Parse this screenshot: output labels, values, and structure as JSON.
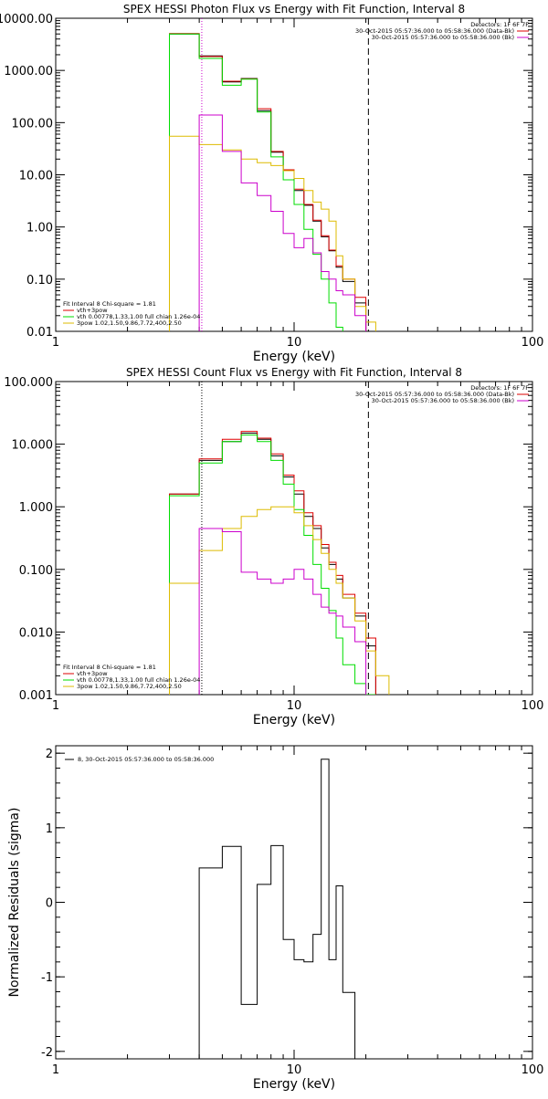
{
  "chart_data": [
    {
      "type": "line",
      "title": "SPEX HESSI Photon Flux vs Energy with Fit Function, Interval 8",
      "xlabel": "Energy (keV)",
      "ylabel": "",
      "xscale": "log",
      "yscale": "log",
      "xlim": [
        1,
        100
      ],
      "ylim": [
        0.01,
        10000
      ],
      "xticks": [
        {
          "v": 1,
          "label": "1"
        },
        {
          "v": 10,
          "label": "10"
        },
        {
          "v": 100,
          "label": "100"
        }
      ],
      "yticks": [
        {
          "v": 10000,
          "label": "10000.00"
        },
        {
          "v": 1000,
          "label": "1000.00"
        },
        {
          "v": 100,
          "label": "100.00"
        },
        {
          "v": 10,
          "label": "10.00"
        },
        {
          "v": 1,
          "label": "1.00"
        },
        {
          "v": 0.1,
          "label": "0.10"
        },
        {
          "v": 0.01,
          "label": "0.01"
        }
      ],
      "vlines": [
        {
          "x": 4.1,
          "style": "dotted",
          "color": "#cc00cc"
        },
        {
          "x": 20.5,
          "style": "dashed",
          "color": "#000000"
        }
      ],
      "edges": [
        3.0,
        4.0,
        5.0,
        6.0,
        7.0,
        8.0,
        9.0,
        10.0,
        11.0,
        12.0,
        13.0,
        14.0,
        15.0,
        16.0,
        18.0,
        20.0,
        22.0,
        25.0
      ],
      "series": [
        {
          "name": "",
          "color": "#000000",
          "values": [
            5000,
            1900,
            600,
            700,
            170,
            27,
            12,
            5,
            2.6,
            1.3,
            0.65,
            0.35,
            0.17,
            0.09,
            0.035,
            null,
            null
          ]
        },
        {
          "name": "vth+3pow",
          "color": "#dd0000",
          "values": [
            5100,
            1850,
            620,
            690,
            185,
            28,
            12.5,
            5.3,
            2.7,
            1.35,
            0.68,
            0.36,
            0.18,
            0.1,
            0.045,
            null,
            null
          ]
        },
        {
          "name": "vth 0.00778,1.33,1.00  full chian 1.26e-04",
          "color": "#00dd00",
          "values": [
            5000,
            1700,
            520,
            680,
            160,
            22,
            8,
            2.7,
            0.9,
            0.3,
            0.1,
            0.035,
            0.012,
            null,
            null,
            null,
            null
          ]
        },
        {
          "name": "3pow 1.02,1.50,9.86,7.72,400,2.50",
          "color": "#ddbb00",
          "values": [
            55,
            38,
            30,
            20,
            17,
            15,
            12,
            8.5,
            5,
            3,
            2.2,
            1.3,
            0.28,
            0.1,
            0.03,
            0.015,
            null
          ]
        },
        {
          "name": "",
          "color": "#cc00cc",
          "values": [
            null,
            140,
            28,
            7,
            4,
            2,
            0.75,
            0.4,
            0.6,
            0.32,
            0.14,
            0.1,
            0.06,
            0.05,
            0.02,
            null,
            null
          ]
        }
      ],
      "legend_top": {
        "header": "Detectors: 1F 6F 7F",
        "lines": [
          {
            "text": "30-Oct-2015 05:57:36.000 to 05:58:36.000 (Data-Bk)",
            "color": "#dd0000"
          },
          {
            "text": "30-Oct-2015 05:57:36.000 to 05:58:36.000 (Bk)",
            "color": "#cc00cc"
          }
        ]
      },
      "legend_bottom": {
        "header": "Fit Interval 8   Chi-square = 1.81",
        "lines": [
          {
            "text": "vth+3pow",
            "color": "#dd0000"
          },
          {
            "text": "vth 0.00778,1.33,1.00  full chian 1.26e-04",
            "color": "#00dd00"
          },
          {
            "text": "3pow 1.02,1.50,9.86,7.72,400,2.50",
            "color": "#ddbb00"
          }
        ]
      }
    },
    {
      "type": "line",
      "title": "SPEX HESSI Count Flux vs Energy with Fit Function, Interval 8",
      "xlabel": "Energy (keV)",
      "ylabel": "",
      "xscale": "log",
      "yscale": "log",
      "xlim": [
        1,
        100
      ],
      "ylim": [
        0.001,
        100
      ],
      "xticks": [
        {
          "v": 1,
          "label": "1"
        },
        {
          "v": 10,
          "label": "10"
        },
        {
          "v": 100,
          "label": "100"
        }
      ],
      "yticks": [
        {
          "v": 100,
          "label": "100.000"
        },
        {
          "v": 10,
          "label": "10.000"
        },
        {
          "v": 1,
          "label": "1.000"
        },
        {
          "v": 0.1,
          "label": "0.100"
        },
        {
          "v": 0.01,
          "label": "0.010"
        },
        {
          "v": 0.001,
          "label": "0.001"
        }
      ],
      "vlines": [
        {
          "x": 4.1,
          "style": "dotted",
          "color": "#000000"
        },
        {
          "x": 20.5,
          "style": "dashed",
          "color": "#000000"
        }
      ],
      "edges": [
        3.0,
        4.0,
        5.0,
        6.0,
        7.0,
        8.0,
        9.0,
        10.0,
        11.0,
        12.0,
        13.0,
        14.0,
        15.0,
        16.0,
        18.0,
        20.0,
        22.0,
        25.0
      ],
      "series": [
        {
          "name": "",
          "color": "#000000",
          "values": [
            1.6,
            5.5,
            11,
            15,
            12,
            6.5,
            3,
            1.6,
            0.7,
            0.45,
            0.22,
            0.12,
            0.07,
            0.035,
            0.018,
            0.006,
            null
          ]
        },
        {
          "name": "vth+3pow",
          "color": "#dd0000",
          "values": [
            1.6,
            5.8,
            12,
            16,
            12.5,
            7,
            3.2,
            1.8,
            0.8,
            0.5,
            0.25,
            0.13,
            0.08,
            0.04,
            0.02,
            0.008,
            null
          ]
        },
        {
          "name": "vth 0.00778,1.33,1.00  full chian 1.26e-04",
          "color": "#00dd00",
          "values": [
            1.5,
            5.0,
            11,
            14,
            11,
            5.5,
            2.3,
            0.9,
            0.35,
            0.12,
            0.05,
            0.022,
            0.008,
            0.003,
            0.0015,
            0.001,
            null
          ]
        },
        {
          "name": "3pow 1.02,1.50,9.86,7.72,400,2.50",
          "color": "#ddbb00",
          "values": [
            0.06,
            0.2,
            0.45,
            0.7,
            0.9,
            1.0,
            1.0,
            0.8,
            0.5,
            0.3,
            0.18,
            0.1,
            0.06,
            0.035,
            0.015,
            0.005,
            0.002
          ]
        },
        {
          "name": "",
          "color": "#cc00cc",
          "values": [
            null,
            0.45,
            0.4,
            0.09,
            0.07,
            0.06,
            0.07,
            0.1,
            0.07,
            0.04,
            0.025,
            0.02,
            0.018,
            0.012,
            0.007,
            null,
            null
          ]
        }
      ],
      "legend_top": {
        "header": "Detectors: 1F 6F 7F",
        "lines": [
          {
            "text": "30-Oct-2015 05:57:36.000 to 05:58:36.000 (Data-Bk)",
            "color": "#dd0000"
          },
          {
            "text": "30-Oct-2015 05:57:36.000 to 05:58:36.000 (Bk)",
            "color": "#cc00cc"
          }
        ]
      },
      "legend_bottom": {
        "header": "Fit Interval 8   Chi-square = 1.81",
        "lines": [
          {
            "text": "vth+3pow",
            "color": "#dd0000"
          },
          {
            "text": "vth 0.00778,1.33,1.00  full chian 1.26e-04",
            "color": "#00dd00"
          },
          {
            "text": "3pow 1.02,1.50,9.86,7.72,400,2.50",
            "color": "#ddbb00"
          }
        ]
      }
    },
    {
      "type": "line",
      "title": "",
      "xlabel": "Energy (keV)",
      "ylabel": "Normalized Residuals (sigma)",
      "xscale": "log",
      "yscale": "linear",
      "xlim": [
        1,
        100
      ],
      "ylim": [
        -2.1,
        2.1
      ],
      "xticks": [
        {
          "v": 1,
          "label": "1"
        },
        {
          "v": 10,
          "label": "10"
        },
        {
          "v": 100,
          "label": "100"
        }
      ],
      "yticks": [
        {
          "v": 2,
          "label": "2"
        },
        {
          "v": 1,
          "label": "1"
        },
        {
          "v": 0,
          "label": "0"
        },
        {
          "v": -1,
          "label": "-1"
        },
        {
          "v": -2,
          "label": "-2"
        }
      ],
      "vlines": [],
      "edges": [
        4.0,
        5.0,
        6.0,
        7.0,
        8.0,
        9.0,
        10.0,
        11.0,
        12.0,
        13.0,
        14.0,
        15.0,
        16.0,
        18.0,
        20.0
      ],
      "series": [
        {
          "name": "8, 30-Oct-2015 05:57:36.000 to 05:58:36.000",
          "color": "#000000",
          "values": [
            0.46,
            0.75,
            -1.37,
            0.24,
            0.76,
            -0.5,
            -0.77,
            -0.8,
            -0.43,
            1.92,
            -0.77,
            0.22,
            -1.21
          ],
          "drop_ends": true
        }
      ],
      "legend_top": {
        "header": "",
        "lines": [
          {
            "text": "8, 30-Oct-2015 05:57:36.000 to 05:58:36.000",
            "color": "#000000"
          }
        ]
      },
      "legend_bottom": {
        "header": "",
        "lines": []
      }
    }
  ]
}
